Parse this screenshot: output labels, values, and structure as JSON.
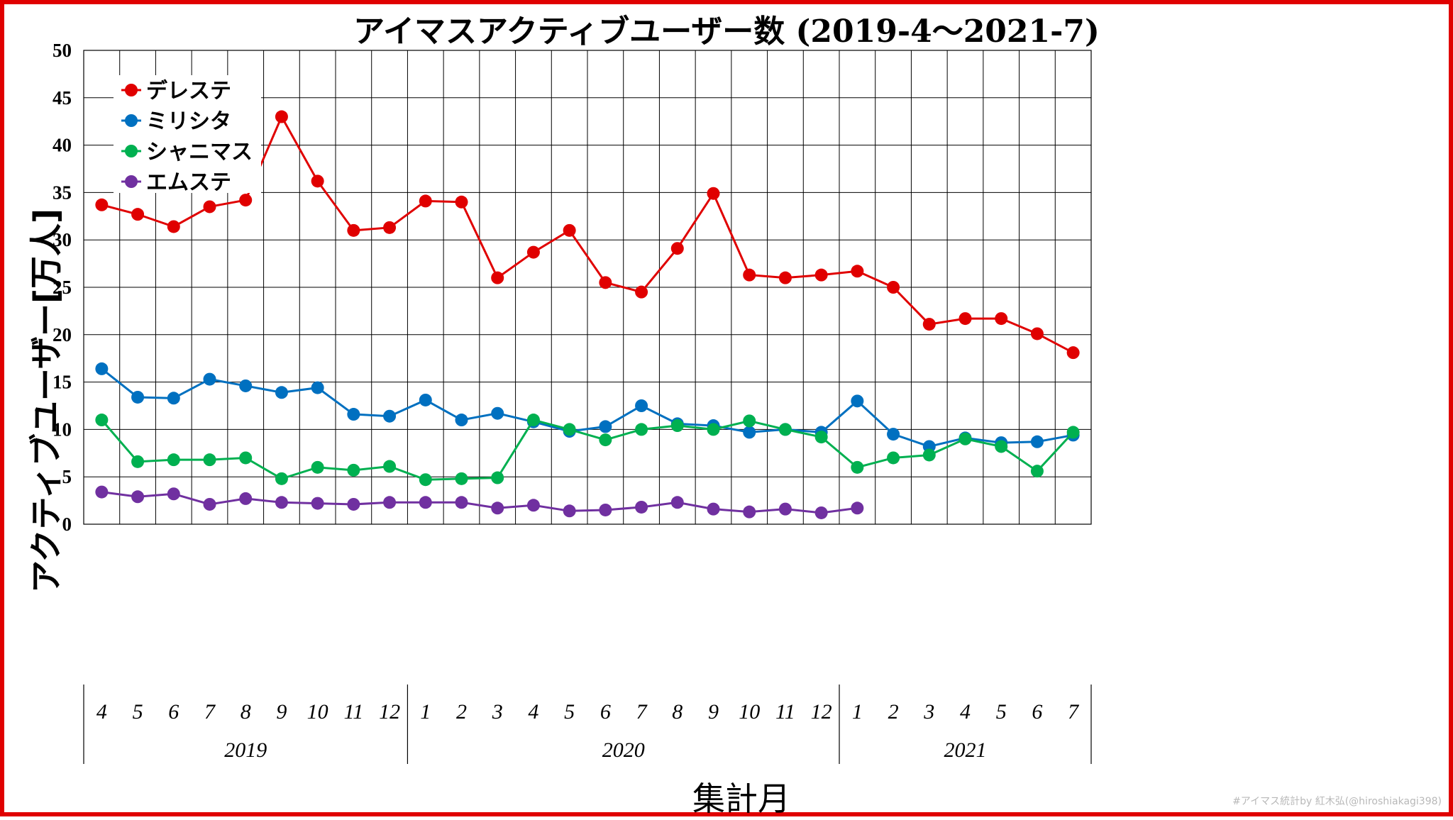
{
  "title": "アイマスアクティブユーザー数 (2019-4～2021-7)",
  "watermark": "#アイマス統計by 紅木弘(@hiroshiakagi398)",
  "chart_data": {
    "type": "line",
    "title": "アイマスアクティブユーザー数 (2019-4～2021-7)",
    "xlabel": "集計月",
    "ylabel": "アクティブユーザー[万人]",
    "ylim": [
      0,
      50
    ],
    "yticks": [
      "0",
      "5",
      "10",
      "15",
      "20",
      "25",
      "30",
      "35",
      "40",
      "45",
      "50"
    ],
    "grid": true,
    "legend_position": "top-left",
    "categories": [
      "4",
      "5",
      "6",
      "7",
      "8",
      "9",
      "10",
      "11",
      "12",
      "1",
      "2",
      "3",
      "4",
      "5",
      "6",
      "7",
      "8",
      "9",
      "10",
      "11",
      "12",
      "1",
      "2",
      "3",
      "4",
      "5",
      "6",
      "7"
    ],
    "years": [
      {
        "label": "2019",
        "count": 9
      },
      {
        "label": "2020",
        "count": 12
      },
      {
        "label": "2021",
        "count": 7
      }
    ],
    "series": [
      {
        "name": "デレステ",
        "color": "#e00000",
        "values": [
          33.7,
          32.7,
          31.4,
          33.5,
          34.2,
          43.0,
          36.2,
          31.0,
          31.3,
          34.1,
          34.0,
          26.0,
          28.7,
          31.0,
          25.5,
          24.5,
          29.1,
          34.9,
          26.3,
          26.0,
          26.3,
          26.7,
          25.0,
          21.1,
          21.7,
          21.7,
          20.1,
          18.1
        ]
      },
      {
        "name": "ミリシタ",
        "color": "#0070c0",
        "values": [
          16.4,
          13.4,
          13.3,
          15.3,
          14.6,
          13.9,
          14.4,
          11.6,
          11.4,
          13.1,
          11.0,
          11.7,
          10.8,
          9.8,
          10.3,
          12.5,
          10.6,
          10.4,
          9.7,
          10.0,
          9.7,
          13.0,
          9.5,
          8.2,
          9.1,
          8.6,
          8.7,
          9.4
        ]
      },
      {
        "name": "シャニマス",
        "color": "#00b050",
        "values": [
          11.0,
          6.6,
          6.8,
          6.8,
          7.0,
          4.8,
          6.0,
          5.7,
          6.1,
          4.7,
          4.8,
          4.9,
          11.0,
          10.0,
          8.9,
          10.0,
          10.4,
          10.0,
          10.9,
          10.0,
          9.2,
          6.0,
          7.0,
          7.3,
          9.0,
          8.2,
          5.6,
          9.7
        ]
      },
      {
        "name": "エムステ",
        "color": "#7030a0",
        "values": [
          3.4,
          2.9,
          3.2,
          2.1,
          2.7,
          2.3,
          2.2,
          2.1,
          2.3,
          2.3,
          2.3,
          1.7,
          2.0,
          1.4,
          1.5,
          1.8,
          2.3,
          1.6,
          1.3,
          1.6,
          1.2,
          1.7,
          null,
          null,
          null,
          null,
          null,
          null
        ]
      }
    ]
  }
}
